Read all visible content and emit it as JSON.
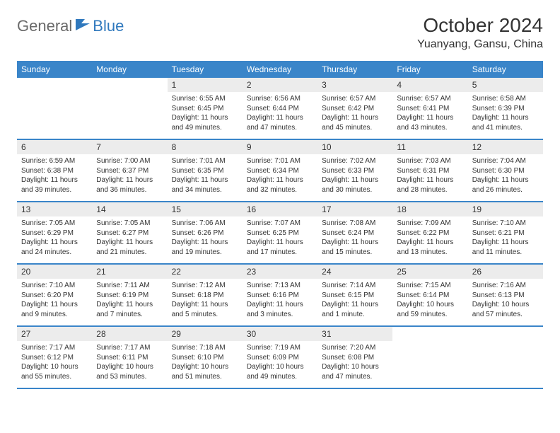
{
  "logo": {
    "text1": "General",
    "text2": "Blue"
  },
  "title": "October 2024",
  "location": "Yuanyang, Gansu, China",
  "colors": {
    "header_bg": "#3a85c9",
    "daynum_bg": "#ececec",
    "logo_gray": "#6a6a6a",
    "logo_blue": "#2f78bd"
  },
  "dayLabels": [
    "Sunday",
    "Monday",
    "Tuesday",
    "Wednesday",
    "Thursday",
    "Friday",
    "Saturday"
  ],
  "weeks": [
    [
      {
        "empty": true
      },
      {
        "empty": true
      },
      {
        "day": "1",
        "sunrise": "Sunrise: 6:55 AM",
        "sunset": "Sunset: 6:45 PM",
        "daylight": "Daylight: 11 hours and 49 minutes."
      },
      {
        "day": "2",
        "sunrise": "Sunrise: 6:56 AM",
        "sunset": "Sunset: 6:44 PM",
        "daylight": "Daylight: 11 hours and 47 minutes."
      },
      {
        "day": "3",
        "sunrise": "Sunrise: 6:57 AM",
        "sunset": "Sunset: 6:42 PM",
        "daylight": "Daylight: 11 hours and 45 minutes."
      },
      {
        "day": "4",
        "sunrise": "Sunrise: 6:57 AM",
        "sunset": "Sunset: 6:41 PM",
        "daylight": "Daylight: 11 hours and 43 minutes."
      },
      {
        "day": "5",
        "sunrise": "Sunrise: 6:58 AM",
        "sunset": "Sunset: 6:39 PM",
        "daylight": "Daylight: 11 hours and 41 minutes."
      }
    ],
    [
      {
        "day": "6",
        "sunrise": "Sunrise: 6:59 AM",
        "sunset": "Sunset: 6:38 PM",
        "daylight": "Daylight: 11 hours and 39 minutes."
      },
      {
        "day": "7",
        "sunrise": "Sunrise: 7:00 AM",
        "sunset": "Sunset: 6:37 PM",
        "daylight": "Daylight: 11 hours and 36 minutes."
      },
      {
        "day": "8",
        "sunrise": "Sunrise: 7:01 AM",
        "sunset": "Sunset: 6:35 PM",
        "daylight": "Daylight: 11 hours and 34 minutes."
      },
      {
        "day": "9",
        "sunrise": "Sunrise: 7:01 AM",
        "sunset": "Sunset: 6:34 PM",
        "daylight": "Daylight: 11 hours and 32 minutes."
      },
      {
        "day": "10",
        "sunrise": "Sunrise: 7:02 AM",
        "sunset": "Sunset: 6:33 PM",
        "daylight": "Daylight: 11 hours and 30 minutes."
      },
      {
        "day": "11",
        "sunrise": "Sunrise: 7:03 AM",
        "sunset": "Sunset: 6:31 PM",
        "daylight": "Daylight: 11 hours and 28 minutes."
      },
      {
        "day": "12",
        "sunrise": "Sunrise: 7:04 AM",
        "sunset": "Sunset: 6:30 PM",
        "daylight": "Daylight: 11 hours and 26 minutes."
      }
    ],
    [
      {
        "day": "13",
        "sunrise": "Sunrise: 7:05 AM",
        "sunset": "Sunset: 6:29 PM",
        "daylight": "Daylight: 11 hours and 24 minutes."
      },
      {
        "day": "14",
        "sunrise": "Sunrise: 7:05 AM",
        "sunset": "Sunset: 6:27 PM",
        "daylight": "Daylight: 11 hours and 21 minutes."
      },
      {
        "day": "15",
        "sunrise": "Sunrise: 7:06 AM",
        "sunset": "Sunset: 6:26 PM",
        "daylight": "Daylight: 11 hours and 19 minutes."
      },
      {
        "day": "16",
        "sunrise": "Sunrise: 7:07 AM",
        "sunset": "Sunset: 6:25 PM",
        "daylight": "Daylight: 11 hours and 17 minutes."
      },
      {
        "day": "17",
        "sunrise": "Sunrise: 7:08 AM",
        "sunset": "Sunset: 6:24 PM",
        "daylight": "Daylight: 11 hours and 15 minutes."
      },
      {
        "day": "18",
        "sunrise": "Sunrise: 7:09 AM",
        "sunset": "Sunset: 6:22 PM",
        "daylight": "Daylight: 11 hours and 13 minutes."
      },
      {
        "day": "19",
        "sunrise": "Sunrise: 7:10 AM",
        "sunset": "Sunset: 6:21 PM",
        "daylight": "Daylight: 11 hours and 11 minutes."
      }
    ],
    [
      {
        "day": "20",
        "sunrise": "Sunrise: 7:10 AM",
        "sunset": "Sunset: 6:20 PM",
        "daylight": "Daylight: 11 hours and 9 minutes."
      },
      {
        "day": "21",
        "sunrise": "Sunrise: 7:11 AM",
        "sunset": "Sunset: 6:19 PM",
        "daylight": "Daylight: 11 hours and 7 minutes."
      },
      {
        "day": "22",
        "sunrise": "Sunrise: 7:12 AM",
        "sunset": "Sunset: 6:18 PM",
        "daylight": "Daylight: 11 hours and 5 minutes."
      },
      {
        "day": "23",
        "sunrise": "Sunrise: 7:13 AM",
        "sunset": "Sunset: 6:16 PM",
        "daylight": "Daylight: 11 hours and 3 minutes."
      },
      {
        "day": "24",
        "sunrise": "Sunrise: 7:14 AM",
        "sunset": "Sunset: 6:15 PM",
        "daylight": "Daylight: 11 hours and 1 minute."
      },
      {
        "day": "25",
        "sunrise": "Sunrise: 7:15 AM",
        "sunset": "Sunset: 6:14 PM",
        "daylight": "Daylight: 10 hours and 59 minutes."
      },
      {
        "day": "26",
        "sunrise": "Sunrise: 7:16 AM",
        "sunset": "Sunset: 6:13 PM",
        "daylight": "Daylight: 10 hours and 57 minutes."
      }
    ],
    [
      {
        "day": "27",
        "sunrise": "Sunrise: 7:17 AM",
        "sunset": "Sunset: 6:12 PM",
        "daylight": "Daylight: 10 hours and 55 minutes."
      },
      {
        "day": "28",
        "sunrise": "Sunrise: 7:17 AM",
        "sunset": "Sunset: 6:11 PM",
        "daylight": "Daylight: 10 hours and 53 minutes."
      },
      {
        "day": "29",
        "sunrise": "Sunrise: 7:18 AM",
        "sunset": "Sunset: 6:10 PM",
        "daylight": "Daylight: 10 hours and 51 minutes."
      },
      {
        "day": "30",
        "sunrise": "Sunrise: 7:19 AM",
        "sunset": "Sunset: 6:09 PM",
        "daylight": "Daylight: 10 hours and 49 minutes."
      },
      {
        "day": "31",
        "sunrise": "Sunrise: 7:20 AM",
        "sunset": "Sunset: 6:08 PM",
        "daylight": "Daylight: 10 hours and 47 minutes."
      },
      {
        "empty": true
      },
      {
        "empty": true
      }
    ]
  ]
}
